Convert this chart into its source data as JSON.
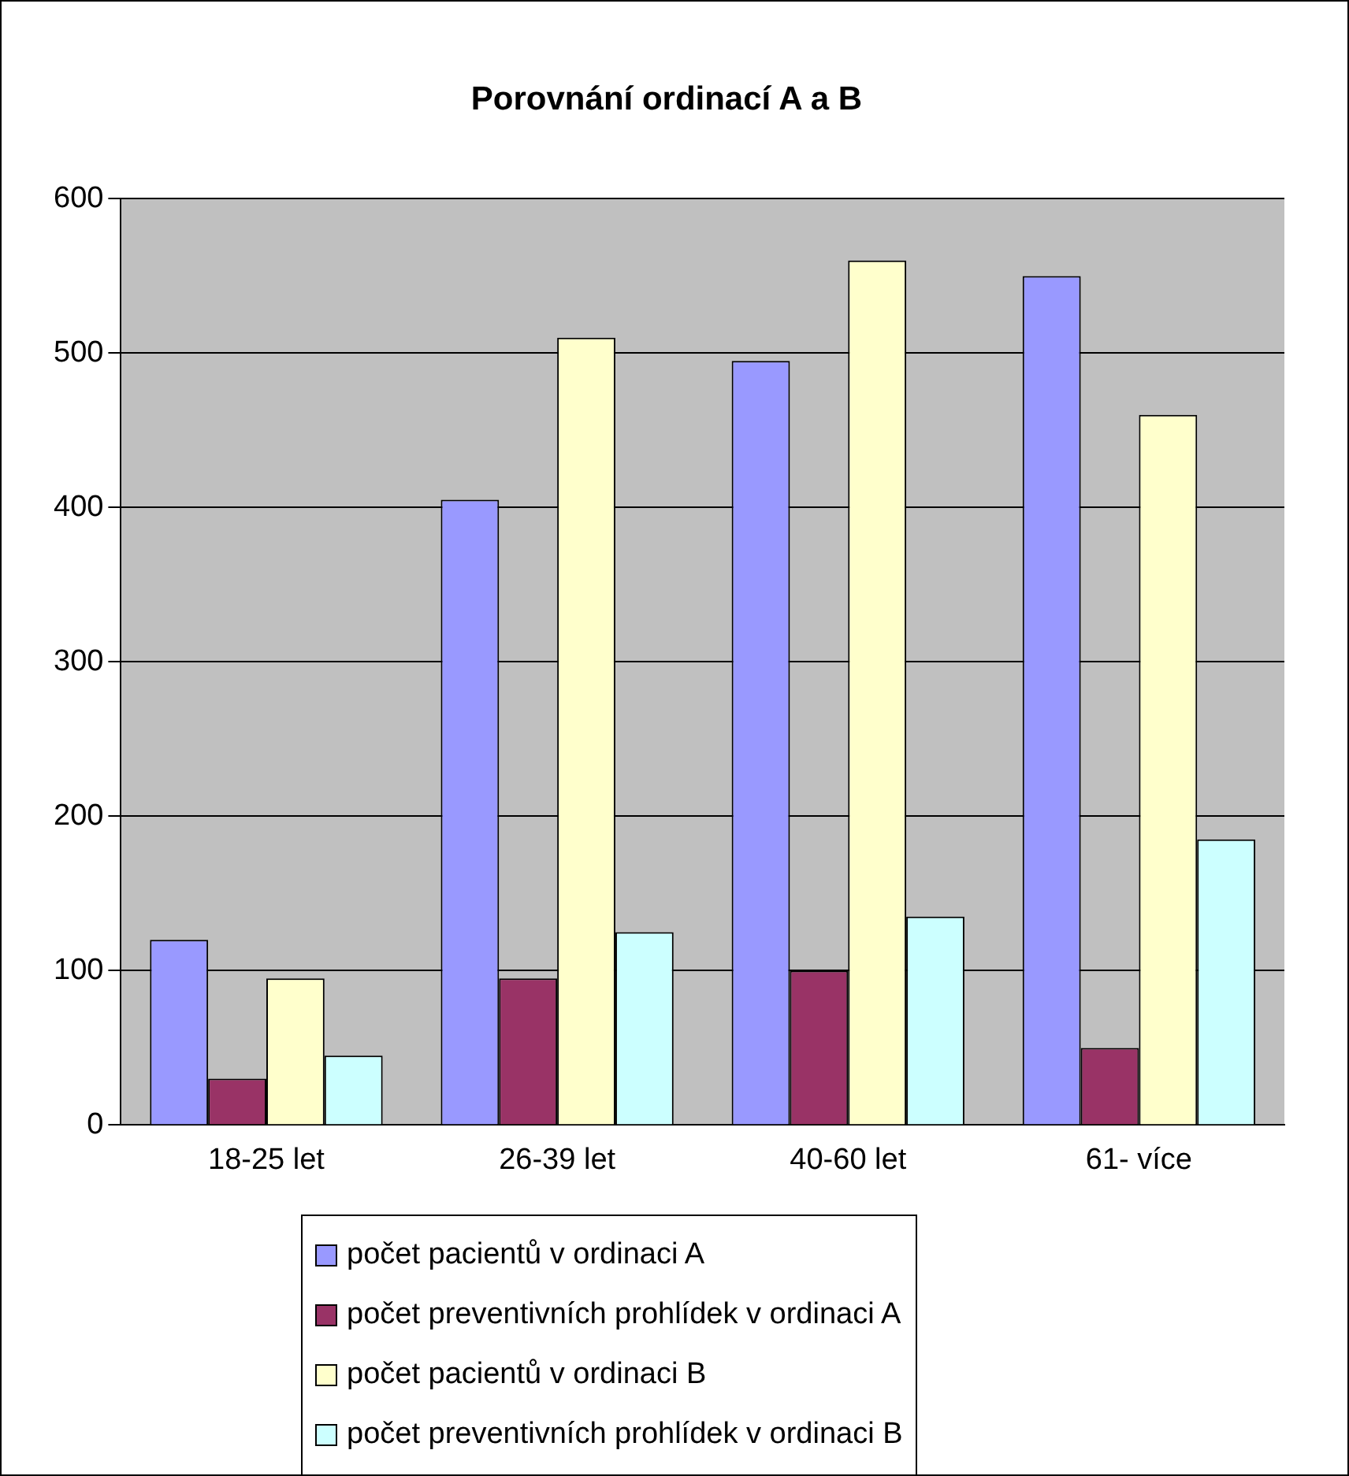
{
  "chart_data": {
    "type": "bar",
    "title": "Porovnání ordinací A a B",
    "categories": [
      "18-25 let",
      "26-39 let",
      "40-60 let",
      "61- více"
    ],
    "series": [
      {
        "name": "počet pacientů v ordinaci A",
        "color": "#9999ff",
        "values": [
          120,
          405,
          495,
          550
        ]
      },
      {
        "name": "počet preventivních prohlídek v ordinaci A",
        "color": "#993366",
        "values": [
          30,
          95,
          100,
          50
        ]
      },
      {
        "name": "počet pacientů v ordinaci B",
        "color": "#ffffcc",
        "values": [
          95,
          510,
          560,
          460
        ]
      },
      {
        "name": "počet preventivních prohlídek v ordinaci B",
        "color": "#ccffff",
        "values": [
          45,
          125,
          135,
          185
        ]
      }
    ],
    "ylim": [
      0,
      600
    ],
    "yticks": [
      0,
      100,
      200,
      300,
      400,
      500,
      600
    ],
    "grid": "y",
    "legend": "bottom"
  }
}
